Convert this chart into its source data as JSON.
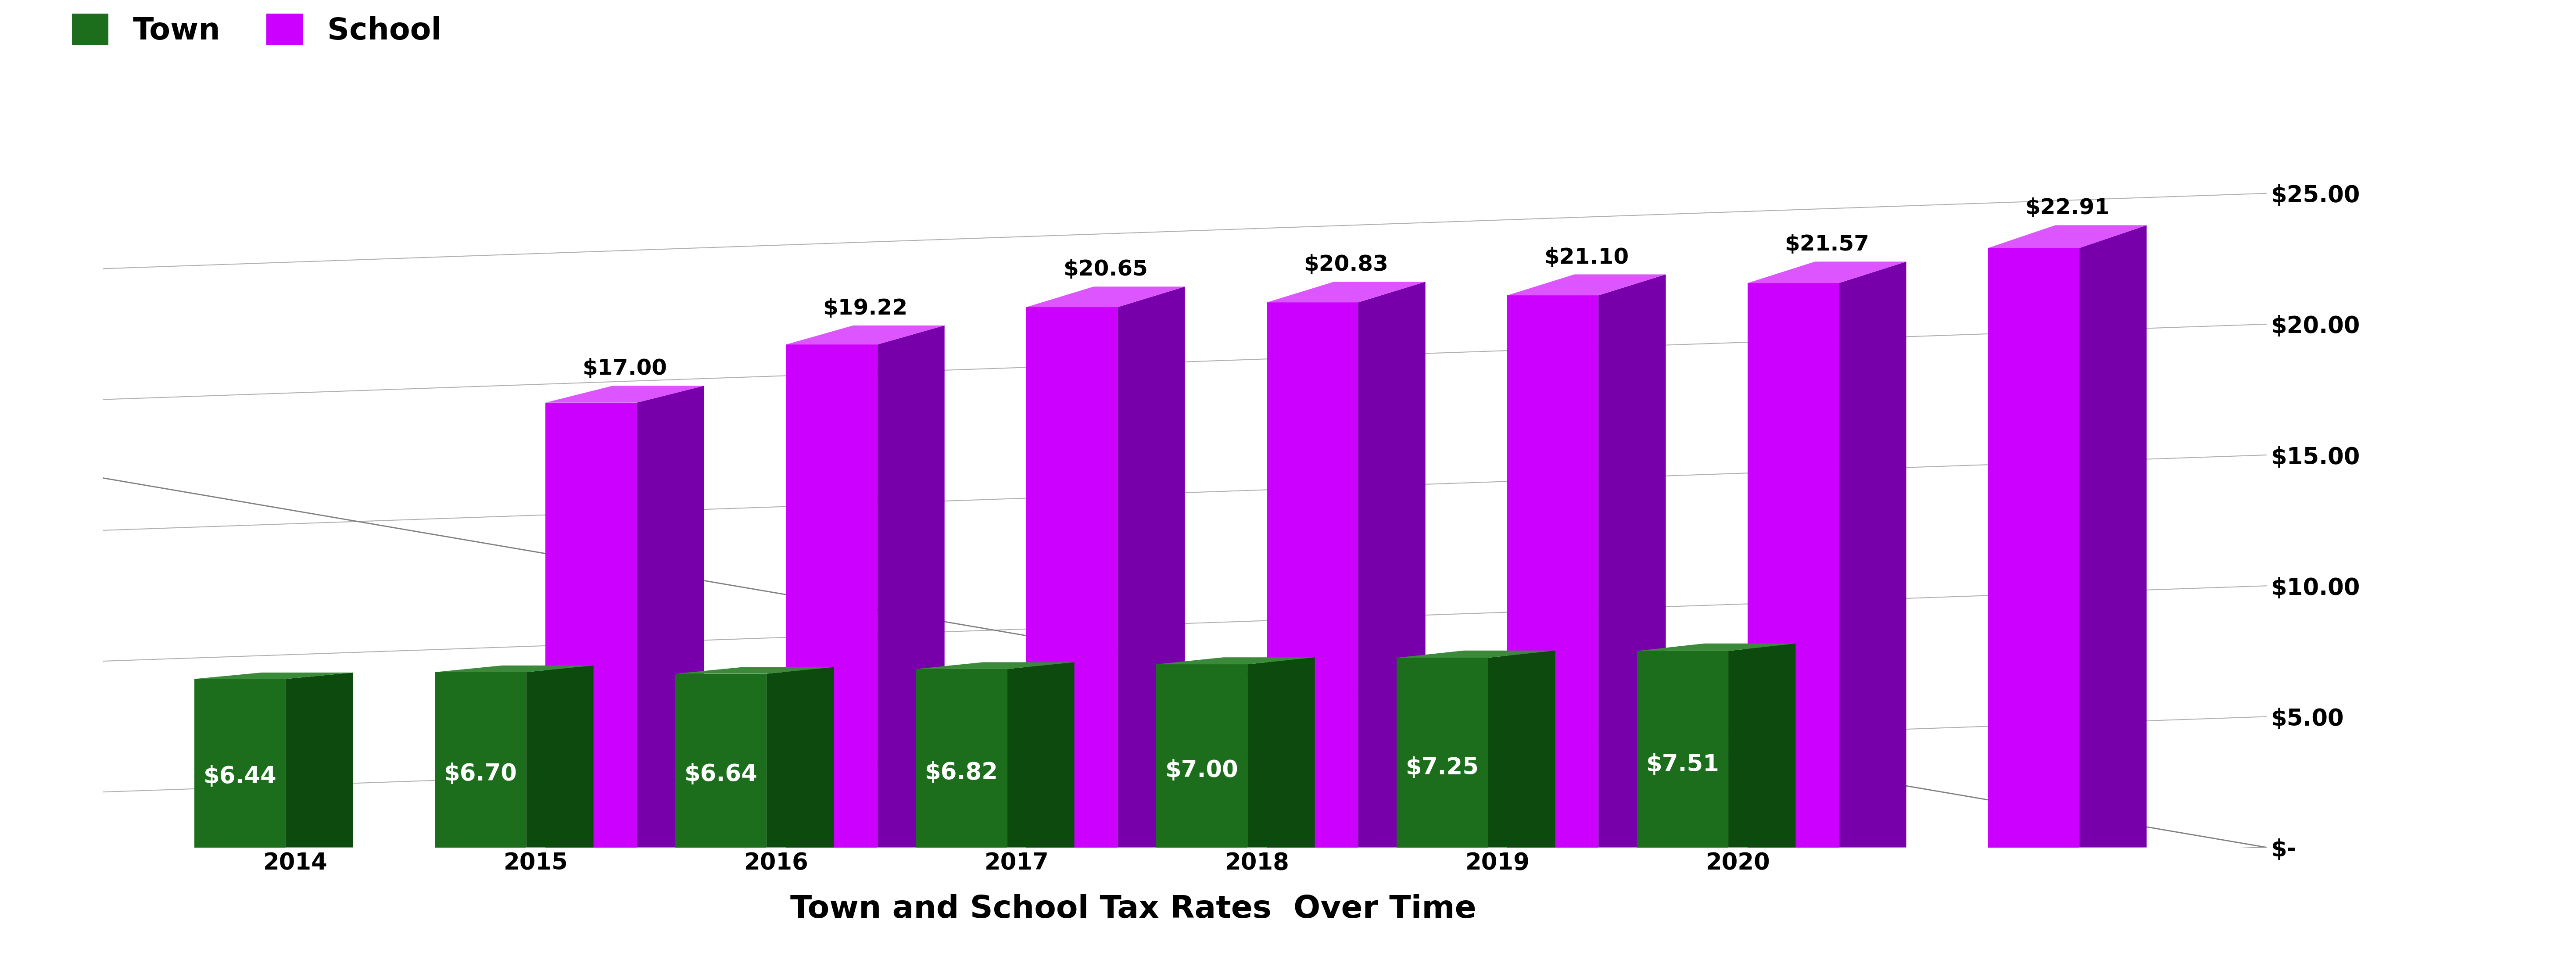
{
  "years_labels": [
    "2014",
    "2015",
    "2016",
    "2017",
    "2018",
    "2019",
    "2020"
  ],
  "town_values": [
    6.44,
    6.7,
    6.64,
    6.82,
    7.0,
    7.25,
    7.51
  ],
  "school_values": [
    17.0,
    19.22,
    20.65,
    20.83,
    21.1,
    21.57,
    22.91
  ],
  "town_has_school": [
    false,
    true,
    true,
    true,
    true,
    true,
    true
  ],
  "town_color_face": "#1c6e1c",
  "town_color_dark": "#0d4a0d",
  "town_color_top": "#3a8a3a",
  "school_color_face": "#cc00ff",
  "school_color_dark": "#7700aa",
  "school_color_top": "#dd55ff",
  "title": "Town and School Tax Rates  Over Time",
  "title_fontsize": 52,
  "legend_fontsize": 50,
  "bar_label_fontsize_town": 38,
  "bar_label_fontsize_school": 36,
  "axis_tick_fontsize": 38,
  "ytick_labels": [
    "$-",
    "$5.00",
    "$10.00",
    "$15.00",
    "$20.00",
    "$25.00"
  ],
  "ytick_values": [
    0,
    5,
    10,
    15,
    20,
    25
  ],
  "background_color": "#ffffff",
  "grid_color": "#b0b0b0"
}
